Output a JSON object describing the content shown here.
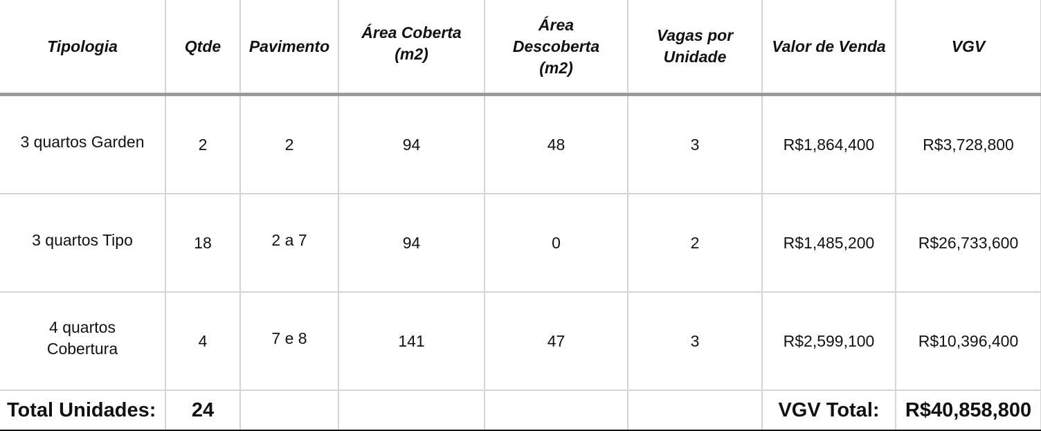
{
  "headers": [
    "Tipologia",
    "Qtde",
    "Pavimento",
    "Área Coberta (m2)",
    "Área Descoberta (m2)",
    "Vagas por Unidade",
    "Valor de Venda",
    "VGV"
  ],
  "rows": [
    {
      "tipologia": "3 quartos Garden",
      "qtde": "2",
      "pavimento": "2",
      "area_coberta": "94",
      "area_descoberta": "48",
      "vagas": "3",
      "valor_venda": "R$1,864,400",
      "vgv": "R$3,728,800"
    },
    {
      "tipologia": "3 quartos Tipo",
      "qtde": "18",
      "pavimento": "2 a 7",
      "area_coberta": "94",
      "area_descoberta": "0",
      "vagas": "2",
      "valor_venda": "R$1,485,200",
      "vgv": "R$26,733,600"
    },
    {
      "tipologia": "4 quartos Cobertura",
      "qtde": "4",
      "pavimento": "7 e 8",
      "area_coberta": "141",
      "area_descoberta": "47",
      "vagas": "3",
      "valor_venda": "R$2,599,100",
      "vgv": "R$10,396,400"
    }
  ],
  "totals": {
    "units_label": "Total Unidades:",
    "units_value": "24",
    "vgv_label": "VGV Total:",
    "vgv_value": "R$40,858,800"
  }
}
